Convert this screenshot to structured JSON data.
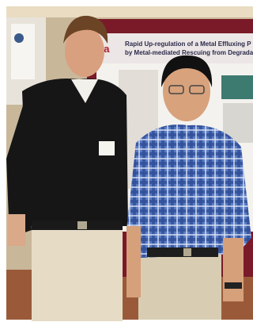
{
  "poster": {
    "logo_fragment": "ka",
    "title_line_1": "Rapid Up-regulation of a Metal Effluxing P",
    "title_line_2": "by Metal-mediated Rescuing from Degradation at t"
  }
}
